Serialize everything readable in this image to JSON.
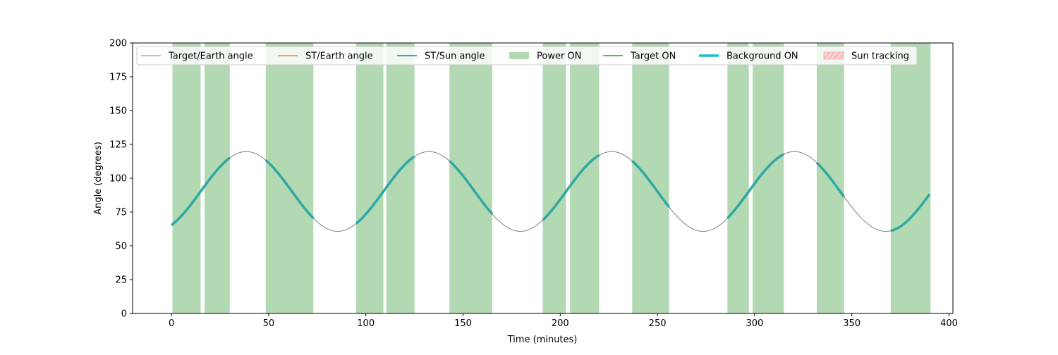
{
  "chart_data": {
    "type": "line",
    "title": "",
    "xlabel": "Time (minutes)",
    "ylabel": "Angle (degrees)",
    "xlim": [
      -20,
      402
    ],
    "ylim": [
      0,
      200
    ],
    "x_ticks": [
      0,
      50,
      100,
      150,
      200,
      250,
      300,
      350,
      400
    ],
    "y_ticks": [
      0,
      25,
      50,
      75,
      100,
      125,
      150,
      175,
      200
    ],
    "grid": false,
    "legend_position": "top",
    "legend": [
      {
        "label": "Target/Earth angle",
        "color": "#808080",
        "kind": "line-thin"
      },
      {
        "label": "ST/Earth angle",
        "color": "#ff7f0e",
        "kind": "line"
      },
      {
        "label": "ST/Sun angle",
        "color": "#1f77b4",
        "kind": "line"
      },
      {
        "label": "Power ON",
        "color": "#b3d9b3",
        "kind": "patch"
      },
      {
        "label": "Target ON",
        "color": "#2ca02c",
        "kind": "line"
      },
      {
        "label": "Background ON",
        "color": "#17becf",
        "kind": "line-thick"
      },
      {
        "label": "Sun tracking",
        "color": "#f8d0d0",
        "kind": "hatch"
      }
    ],
    "target_earth_angle": {
      "name": "Target/Earth angle",
      "color": "#808080",
      "model": {
        "mean": 90.2,
        "amplitude": 29.5,
        "period_min": 94.0,
        "peak_time_min": 38.5
      },
      "x_range": [
        0,
        390
      ]
    },
    "power_on_intervals": [
      [
        0.5,
        15
      ],
      [
        17,
        30
      ],
      [
        48.5,
        73
      ],
      [
        95,
        109
      ],
      [
        110.5,
        125
      ],
      [
        143,
        165
      ],
      [
        191,
        203
      ],
      [
        205,
        220
      ],
      [
        237,
        256
      ],
      [
        286,
        297
      ],
      [
        299,
        315
      ],
      [
        332,
        346
      ],
      [
        370,
        390.5
      ]
    ],
    "background_on_intervals": [
      [
        0,
        30
      ],
      [
        48.5,
        73
      ],
      [
        95,
        125
      ],
      [
        143,
        165
      ],
      [
        191,
        220
      ],
      [
        237,
        256
      ],
      [
        286,
        315
      ],
      [
        332,
        346
      ],
      [
        370,
        390
      ]
    ],
    "colors": {
      "power_on": "#b3d9b3",
      "background_on": "#2ea8a2",
      "target_earth": "#808080"
    }
  }
}
